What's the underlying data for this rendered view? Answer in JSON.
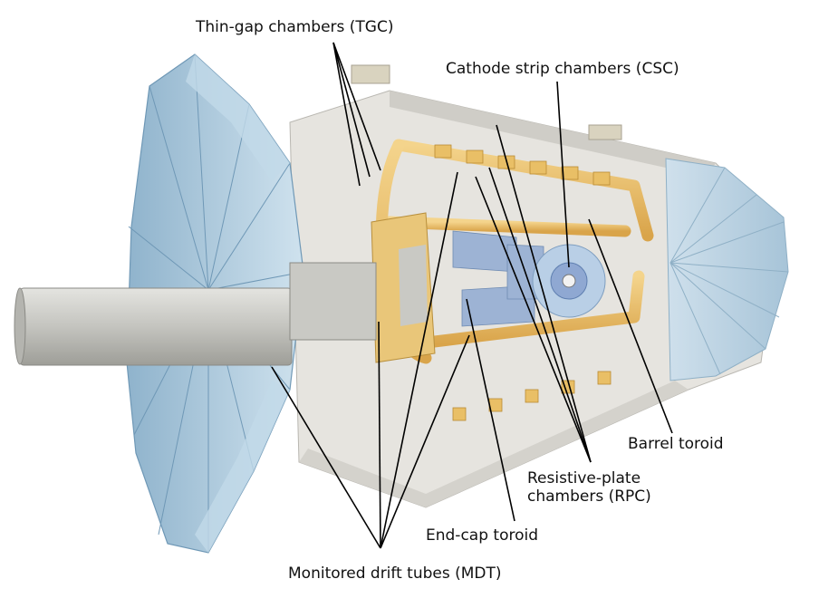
{
  "labels": {
    "tgc": "Thin-gap chambers (TGC)",
    "csc": "Cathode strip chambers (CSC)",
    "barrel_toroid": "Barrel toroid",
    "rpc": "Resistive-plate chambers (RPC)",
    "endcap_toroid": "End-cap toroid",
    "mdt": "Monitored drift tubes (MDT)"
  },
  "colors": {
    "wheel_blue": "#a9c8dc",
    "wheel_blue_dark": "#7ea6c0",
    "toroid_gold": "#e8b95a",
    "beam_pipe": "#c8c8c4",
    "chamber_blue": "#9db3d4",
    "leader": "#000000"
  }
}
